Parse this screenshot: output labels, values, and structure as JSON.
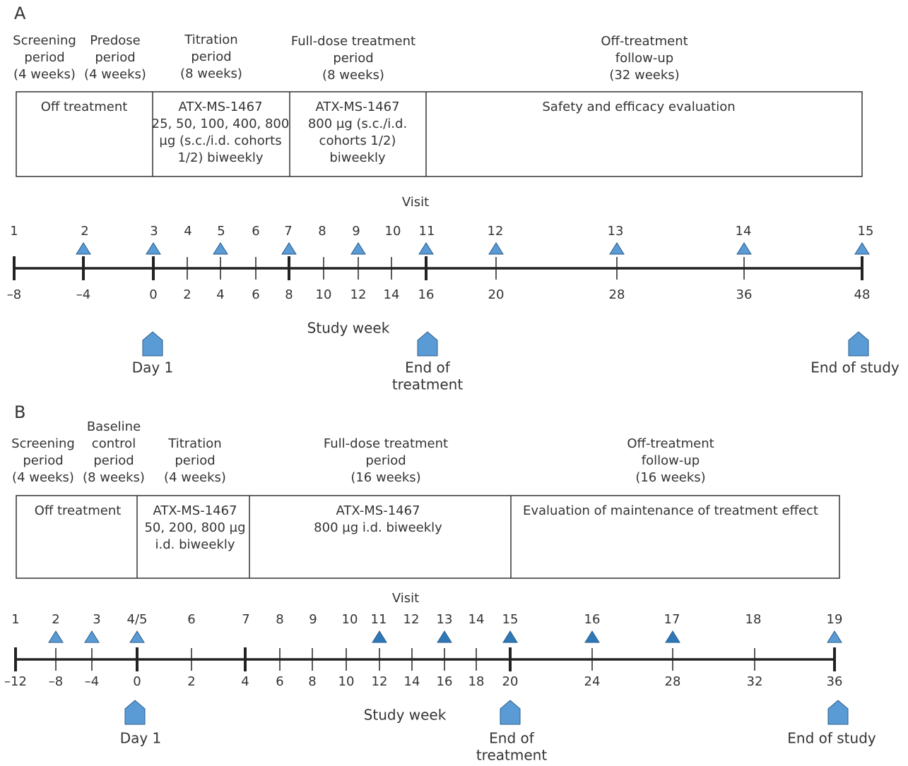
{
  "panels": [
    {
      "label": "A",
      "header_periods": [
        [
          "Screening",
          "period",
          "(4 weeks)"
        ],
        [
          "Predose",
          "period",
          "(4 weeks)"
        ],
        [
          "Titration",
          "period",
          "(8 weeks)"
        ],
        [
          "Full-dose treatment",
          "period",
          "(8 weeks)"
        ],
        [
          "Off-treatment",
          "follow-up",
          "(32 weeks)"
        ]
      ],
      "box_cells": [
        [
          "Off treatment"
        ],
        [
          "ATX-MS-1467",
          "25, 50, 100, 400, 800",
          "µg (s.c./i.d. cohorts",
          "1/2) biweekly"
        ],
        [
          "ATX-MS-1467",
          "800 µg (s.c./i.d.",
          "cohorts 1/2)",
          "biweekly"
        ],
        [
          "Safety and efficacy evaluation"
        ]
      ],
      "visit_label": "Visit",
      "visits": [
        "1",
        "2",
        "3",
        "4",
        "5",
        "6",
        "7",
        "8",
        "9",
        "10",
        "11",
        "12",
        "13",
        "14",
        "15"
      ],
      "weeks": [
        "–8",
        "–4",
        "0",
        "2",
        "4",
        "6",
        "8",
        "10",
        "12",
        "14",
        "16",
        "20",
        "28",
        "36",
        "48"
      ],
      "week_label": "Study week",
      "milestones": [
        [
          "Day 1"
        ],
        [
          "End of",
          "treatment"
        ],
        [
          "End of study"
        ]
      ]
    },
    {
      "label": "B",
      "header_periods": [
        [
          "Screening",
          "period",
          "(4 weeks)"
        ],
        [
          "Baseline",
          "control",
          "period",
          "(8 weeks)"
        ],
        [
          "Titration",
          "period",
          "(4 weeks)"
        ],
        [
          "Full-dose treatment",
          "period",
          "(16 weeks)"
        ],
        [
          "Off-treatment",
          "follow-up",
          "(16 weeks)"
        ]
      ],
      "box_cells": [
        [
          "Off treatment"
        ],
        [
          "ATX-MS-1467",
          "50, 200, 800 µg",
          "i.d. biweekly"
        ],
        [
          "ATX-MS-1467",
          "800 µg i.d. biweekly"
        ],
        [
          "Evaluation of maintenance of treatment effect"
        ]
      ],
      "visit_label": "Visit",
      "visits": [
        "1",
        "2",
        "3",
        "4/5",
        "6",
        "7",
        "8",
        "9",
        "10",
        "11",
        "12",
        "13",
        "14",
        "15",
        "16",
        "17",
        "18",
        "19"
      ],
      "weeks": [
        "–12",
        "–8",
        "–4",
        "0",
        "2",
        "4",
        "6",
        "8",
        "10",
        "12",
        "14",
        "16",
        "18",
        "20",
        "24",
        "28",
        "32",
        "36"
      ],
      "week_label": "Study week",
      "milestones": [
        [
          "Day 1"
        ],
        [
          "End of",
          "treatment"
        ],
        [
          "End of study"
        ]
      ]
    }
  ]
}
